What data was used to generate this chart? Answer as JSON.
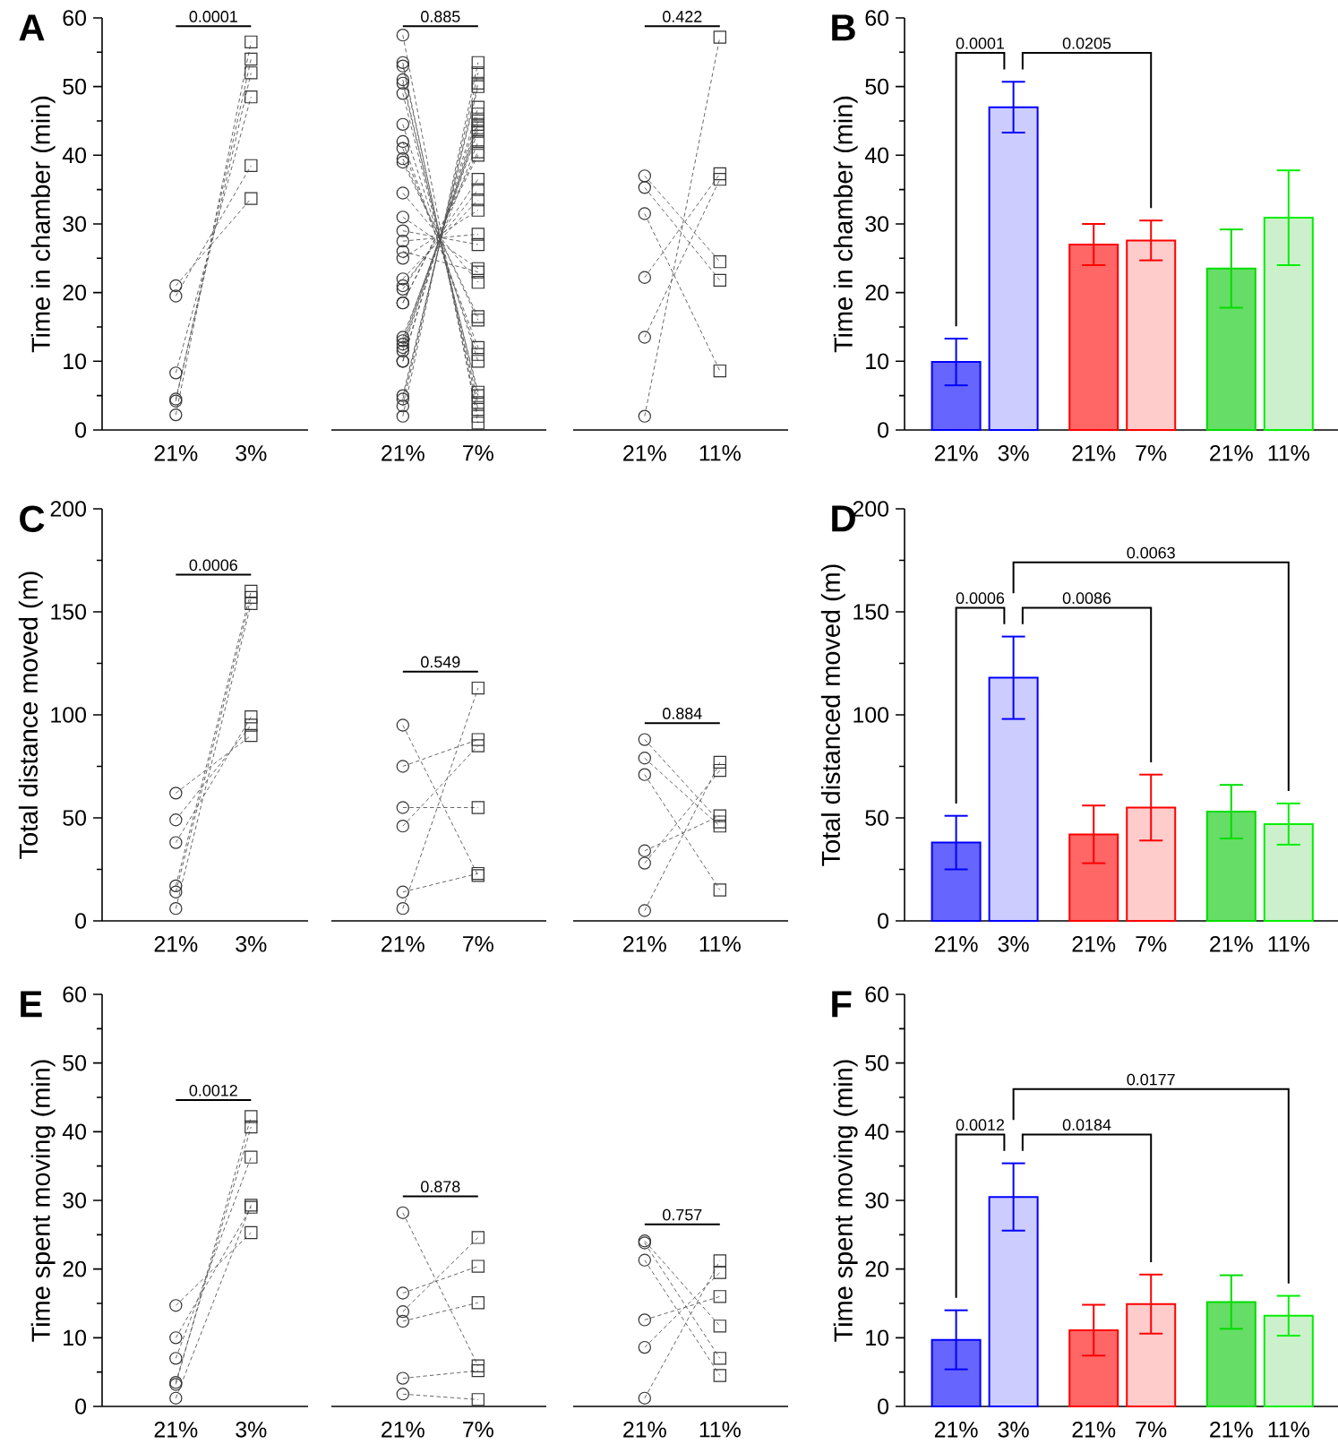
{
  "chart_data": [
    {
      "type": "line",
      "title": "A",
      "ylabel": "Time in chamber (min)",
      "categories": [
        "21%",
        "3%"
      ],
      "ylim": [
        0,
        60
      ],
      "yticks": [
        0,
        10,
        20,
        30,
        40,
        50,
        60
      ],
      "color": "#555555",
      "line_style": "dashed",
      "annotations": [
        "0.0001"
      ],
      "series": [
        {
          "type": "scatter",
          "marker": "circle",
          "color": "#333333",
          "x": [
            "21%",
            "21%",
            "21%",
            "21%",
            "21%",
            "21%"
          ],
          "values": [
            21,
            19.5,
            8.3,
            4.5,
            4.2,
            2.2
          ]
        },
        {
          "type": "scatter",
          "marker": "square",
          "color": "#333333",
          "x": [
            "3%",
            "3%",
            "3%",
            "3%",
            "3%",
            "3%"
          ],
          "values": [
            33.7,
            38.5,
            48.5,
            52,
            54,
            56.5
          ]
        },
        {
          "values": [
            21,
            33.7
          ]
        },
        {
          "values": [
            19.5,
            38.5
          ]
        },
        {
          "values": [
            8.3,
            48.5
          ]
        },
        {
          "values": [
            4.5,
            52
          ]
        },
        {
          "values": [
            4.2,
            54
          ]
        },
        {
          "values": [
            2.2,
            56.5
          ]
        }
      ]
    },
    {
      "type": "line",
      "categories": [
        "21%",
        "7%"
      ],
      "ylim": [
        0,
        60
      ],
      "yticks": [
        0,
        10,
        20,
        30,
        40,
        50,
        60
      ],
      "tick_labels": "x",
      "color": "#555555",
      "line_style": "dashed",
      "annotations": [
        "0.885"
      ],
      "series": [
        {
          "type": "scatter",
          "marker": "circle",
          "color": "#333333",
          "x": [
            "21%",
            "21%",
            "21%",
            "21%",
            "21%",
            "21%",
            "21%",
            "21%",
            "21%",
            "21%",
            "21%",
            "21%",
            "21%",
            "21%",
            "21%",
            "21%",
            "21%",
            "21%",
            "21%",
            "21%",
            "21%",
            "21%",
            "21%",
            "21%",
            "21%",
            "21%",
            "21%",
            "21%",
            "21%",
            "21%",
            "21%",
            "21%",
            "21%"
          ],
          "values": [
            57.5,
            53.5,
            53,
            51,
            50.5,
            49,
            44.5,
            42,
            41,
            39.5,
            39,
            34.5,
            31,
            29,
            27.5,
            26,
            25,
            22,
            21,
            20.5,
            18.5,
            18.5,
            13.5,
            13,
            12.5,
            12,
            11.5,
            10,
            10,
            5,
            4.5,
            3.5,
            2
          ]
        },
        {
          "type": "scatter",
          "marker": "square",
          "color": "#333333",
          "x": [
            "7%",
            "7%",
            "7%",
            "7%",
            "7%",
            "7%",
            "7%",
            "7%",
            "7%",
            "7%",
            "7%",
            "7%",
            "7%",
            "7%",
            "7%",
            "7%",
            "7%",
            "7%",
            "7%",
            "7%",
            "7%",
            "7%",
            "7%",
            "7%",
            "7%",
            "7%",
            "7%",
            "7%",
            "7%",
            "7%",
            "7%",
            "7%",
            "7%"
          ],
          "values": [
            1,
            2,
            3,
            4,
            5,
            5.5,
            10,
            11,
            12,
            16,
            16.5,
            21.5,
            23.5,
            27,
            28.5,
            23,
            32,
            33.5,
            35,
            36.5,
            40,
            40.5,
            42,
            43.5,
            44,
            44.5,
            45,
            46,
            47,
            50,
            50.5,
            52,
            53.5
          ]
        },
        {
          "values": [
            57.5,
            1
          ]
        },
        {
          "values": [
            53.5,
            2
          ]
        },
        {
          "values": [
            53,
            3
          ]
        },
        {
          "values": [
            51,
            4
          ]
        },
        {
          "values": [
            50.5,
            5
          ]
        },
        {
          "values": [
            49,
            5.5
          ]
        },
        {
          "values": [
            44.5,
            10
          ]
        },
        {
          "values": [
            42,
            11
          ]
        },
        {
          "values": [
            41,
            12
          ]
        },
        {
          "values": [
            39.5,
            16
          ]
        },
        {
          "values": [
            39,
            16.5
          ]
        },
        {
          "values": [
            34.5,
            21.5
          ]
        },
        {
          "values": [
            31,
            23.5
          ]
        },
        {
          "values": [
            29,
            27
          ]
        },
        {
          "values": [
            27.5,
            28.5
          ]
        },
        {
          "values": [
            26,
            23
          ]
        },
        {
          "values": [
            25,
            32
          ]
        },
        {
          "values": [
            22,
            33.5
          ]
        },
        {
          "values": [
            21,
            35
          ]
        },
        {
          "values": [
            20.5,
            36.5
          ]
        },
        {
          "values": [
            18.5,
            40
          ]
        },
        {
          "values": [
            18.5,
            40.5
          ]
        },
        {
          "values": [
            13.5,
            42
          ]
        },
        {
          "values": [
            13,
            43.5
          ]
        },
        {
          "values": [
            12.5,
            44
          ]
        },
        {
          "values": [
            12,
            44.5
          ]
        },
        {
          "values": [
            11.5,
            45
          ]
        },
        {
          "values": [
            10,
            46
          ]
        },
        {
          "values": [
            10,
            47
          ]
        },
        {
          "values": [
            5,
            50
          ]
        },
        {
          "values": [
            4.5,
            50.5
          ]
        },
        {
          "values": [
            3.5,
            52
          ]
        },
        {
          "values": [
            2,
            53.5
          ]
        }
      ]
    },
    {
      "type": "line",
      "categories": [
        "21%",
        "11%"
      ],
      "ylim": [
        0,
        60
      ],
      "yticks": [
        0,
        10,
        20,
        30,
        40,
        50,
        60
      ],
      "tick_labels": "x",
      "color": "#555555",
      "line_style": "dashed",
      "annotations": [
        "0.422"
      ],
      "series": [
        {
          "type": "scatter",
          "marker": "circle",
          "color": "#333333",
          "x": [
            "21%",
            "21%",
            "21%",
            "21%",
            "21%",
            "21%"
          ],
          "values": [
            37,
            35.3,
            31.5,
            22.2,
            13.5,
            2
          ]
        },
        {
          "type": "scatter",
          "marker": "square",
          "color": "#333333",
          "x": [
            "11%",
            "11%",
            "11%",
            "11%",
            "11%",
            "11%"
          ],
          "values": [
            24.5,
            21.8,
            8.6,
            37.3,
            36.5,
            57.2
          ]
        },
        {
          "values": [
            37,
            24.5
          ]
        },
        {
          "values": [
            35.3,
            21.8
          ]
        },
        {
          "values": [
            31.5,
            8.6
          ]
        },
        {
          "values": [
            22.2,
            37.3
          ]
        },
        {
          "values": [
            13.5,
            36.5
          ]
        },
        {
          "values": [
            2,
            57.2
          ]
        }
      ]
    },
    {
      "type": "bar",
      "title": "B",
      "ylabel": "Time in chamber (min)",
      "categories": [
        "21%",
        "3%",
        "21%",
        "7%",
        "21%",
        "11%"
      ],
      "ylim": [
        0,
        60
      ],
      "yticks": [
        0,
        10,
        20,
        30,
        40,
        50,
        60
      ],
      "values": [
        9.9,
        47,
        27,
        27.6,
        23.5,
        30.9
      ],
      "errors": [
        3.4,
        3.7,
        3,
        2.9,
        5.7,
        6.9
      ],
      "colors": [
        "#6666ff",
        "#ccccff",
        "#ff6666",
        "#ffcccc",
        "#66dd66",
        "#ccf0cc"
      ],
      "annotations": [
        "0.0001",
        "0.0205"
      ]
    },
    {
      "type": "line",
      "title": "C",
      "ylabel": "Total distance moved (m)",
      "categories": [
        "21%",
        "3%"
      ],
      "ylim": [
        0,
        200
      ],
      "yticks": [
        0,
        50,
        100,
        150,
        200
      ],
      "color": "#555555",
      "line_style": "dashed",
      "annotations": [
        "0.0006"
      ],
      "series": [
        {
          "type": "scatter",
          "marker": "circle",
          "color": "#333333",
          "x": [
            "21%",
            "21%",
            "21%",
            "21%",
            "21%",
            "21%"
          ],
          "values": [
            62,
            49,
            38,
            17,
            14,
            6
          ]
        },
        {
          "type": "scatter",
          "marker": "square",
          "color": "#333333",
          "x": [
            "3%",
            "3%",
            "3%",
            "3%",
            "3%",
            "3%"
          ],
          "values": [
            90,
            95,
            99,
            160,
            157,
            154
          ]
        },
        {
          "values": [
            62,
            90
          ]
        },
        {
          "values": [
            49,
            95
          ]
        },
        {
          "values": [
            38,
            99
          ]
        },
        {
          "values": [
            17,
            160
          ]
        },
        {
          "values": [
            14,
            157
          ]
        },
        {
          "values": [
            6,
            154
          ]
        }
      ]
    },
    {
      "type": "line",
      "categories": [
        "21%",
        "7%"
      ],
      "ylim": [
        0,
        200
      ],
      "yticks": [
        0,
        50,
        100,
        150,
        200
      ],
      "tick_labels": "x",
      "color": "#555555",
      "line_style": "dashed",
      "annotations": [
        "0.549"
      ],
      "series": [
        {
          "type": "scatter",
          "marker": "circle",
          "color": "#333333",
          "x": [
            "21%",
            "21%",
            "21%",
            "21%",
            "21%",
            "21%"
          ],
          "values": [
            95,
            75,
            55,
            46,
            14,
            6
          ]
        },
        {
          "type": "scatter",
          "marker": "square",
          "color": "#333333",
          "x": [
            "7%",
            "7%",
            "7%",
            "7%",
            "7%",
            "7%"
          ],
          "values": [
            22,
            88,
            55,
            85,
            23,
            113
          ]
        },
        {
          "values": [
            95,
            22
          ]
        },
        {
          "values": [
            75,
            88
          ]
        },
        {
          "values": [
            55,
            55
          ]
        },
        {
          "values": [
            46,
            85
          ]
        },
        {
          "values": [
            14,
            23
          ]
        },
        {
          "values": [
            6,
            113
          ]
        }
      ]
    },
    {
      "type": "line",
      "categories": [
        "21%",
        "11%"
      ],
      "ylim": [
        0,
        200
      ],
      "yticks": [
        0,
        50,
        100,
        150,
        200
      ],
      "tick_labels": "x",
      "color": "#555555",
      "line_style": "dashed",
      "annotations": [
        "0.884"
      ],
      "series": [
        {
          "type": "scatter",
          "marker": "circle",
          "color": "#333333",
          "x": [
            "21%",
            "21%",
            "21%",
            "21%",
            "21%",
            "21%"
          ],
          "values": [
            88,
            79,
            71,
            34,
            28,
            5
          ]
        },
        {
          "type": "scatter",
          "marker": "square",
          "color": "#333333",
          "x": [
            "11%",
            "11%",
            "11%",
            "11%",
            "11%",
            "11%"
          ],
          "values": [
            48,
            46,
            15,
            51,
            73,
            77
          ]
        },
        {
          "values": [
            88,
            48
          ]
        },
        {
          "values": [
            79,
            46
          ]
        },
        {
          "values": [
            71,
            15
          ]
        },
        {
          "values": [
            34,
            51
          ]
        },
        {
          "values": [
            28,
            73
          ]
        },
        {
          "values": [
            5,
            77
          ]
        }
      ]
    },
    {
      "type": "bar",
      "title": "D",
      "ylabel": "Total distanced moved (m)",
      "categories": [
        "21%",
        "3%",
        "21%",
        "7%",
        "21%",
        "11%"
      ],
      "ylim": [
        0,
        200
      ],
      "yticks": [
        0,
        50,
        100,
        150,
        200
      ],
      "values": [
        38,
        118,
        42,
        55,
        53,
        47
      ],
      "errors": [
        13,
        20,
        14,
        16,
        13,
        10
      ],
      "colors": [
        "#6666ff",
        "#ccccff",
        "#ff6666",
        "#ffcccc",
        "#66dd66",
        "#ccf0cc"
      ],
      "annotations": [
        "0.0006",
        "0.0086",
        "0.0063"
      ]
    },
    {
      "type": "line",
      "title": "E",
      "ylabel": "Time spent moving (min)",
      "categories": [
        "21%",
        "3%"
      ],
      "ylim": [
        0,
        60
      ],
      "yticks": [
        0,
        10,
        20,
        30,
        40,
        50,
        60
      ],
      "color": "#555555",
      "line_style": "dashed",
      "annotations": [
        "0.0012"
      ],
      "series": [
        {
          "type": "scatter",
          "marker": "circle",
          "color": "#333333",
          "x": [
            "21%",
            "21%",
            "21%",
            "21%",
            "21%",
            "21%"
          ],
          "values": [
            14.7,
            10,
            7,
            3.5,
            3.2,
            1.2
          ]
        },
        {
          "type": "scatter",
          "marker": "square",
          "color": "#333333",
          "x": [
            "3%",
            "3%",
            "3%",
            "3%",
            "3%",
            "3%"
          ],
          "values": [
            25.3,
            29,
            36.3,
            40.7,
            42.2,
            29.3
          ]
        },
        {
          "values": [
            14.7,
            25.3
          ]
        },
        {
          "values": [
            10,
            29
          ]
        },
        {
          "values": [
            7,
            36.3
          ]
        },
        {
          "values": [
            3.5,
            40.7
          ]
        },
        {
          "values": [
            3.2,
            42.2
          ]
        },
        {
          "values": [
            1.2,
            29.3
          ]
        }
      ]
    },
    {
      "type": "line",
      "categories": [
        "21%",
        "7%"
      ],
      "ylim": [
        0,
        60
      ],
      "yticks": [
        0,
        10,
        20,
        30,
        40,
        50,
        60
      ],
      "tick_labels": "x",
      "color": "#555555",
      "line_style": "dashed",
      "annotations": [
        "0.878"
      ],
      "series": [
        {
          "type": "scatter",
          "marker": "circle",
          "color": "#333333",
          "x": [
            "21%",
            "21%",
            "21%",
            "21%",
            "21%",
            "21%"
          ],
          "values": [
            28.2,
            16.5,
            13.8,
            12.4,
            4.1,
            1.8
          ]
        },
        {
          "type": "scatter",
          "marker": "square",
          "color": "#333333",
          "x": [
            "7%",
            "7%",
            "7%",
            "7%",
            "7%",
            "7%"
          ],
          "values": [
            5.9,
            20.4,
            24.6,
            15.1,
            5.2,
            1
          ]
        },
        {
          "values": [
            28.2,
            5.9
          ]
        },
        {
          "values": [
            16.5,
            20.4
          ]
        },
        {
          "values": [
            13.8,
            24.6
          ]
        },
        {
          "values": [
            12.4,
            15.1
          ]
        },
        {
          "values": [
            4.1,
            5.2
          ]
        },
        {
          "values": [
            1.8,
            1
          ]
        }
      ]
    },
    {
      "type": "line",
      "categories": [
        "21%",
        "11%"
      ],
      "ylim": [
        0,
        60
      ],
      "yticks": [
        0,
        10,
        20,
        30,
        40,
        50,
        60
      ],
      "tick_labels": "x",
      "color": "#555555",
      "line_style": "dashed",
      "annotations": [
        "0.757"
      ],
      "series": [
        {
          "type": "scatter",
          "marker": "circle",
          "color": "#333333",
          "x": [
            "21%",
            "21%",
            "21%",
            "21%",
            "21%",
            "21%"
          ],
          "values": [
            24.1,
            23.8,
            21.3,
            12.6,
            8.6,
            1.2
          ]
        },
        {
          "type": "scatter",
          "marker": "square",
          "color": "#333333",
          "x": [
            "11%",
            "11%",
            "11%",
            "11%",
            "11%",
            "11%"
          ],
          "values": [
            11.7,
            7,
            4.5,
            16,
            19.5,
            21.2
          ]
        },
        {
          "values": [
            24.1,
            11.7
          ]
        },
        {
          "values": [
            23.8,
            7
          ]
        },
        {
          "values": [
            21.3,
            4.5
          ]
        },
        {
          "values": [
            12.6,
            16
          ]
        },
        {
          "values": [
            8.6,
            19.5
          ]
        },
        {
          "values": [
            1.2,
            21.2
          ]
        }
      ]
    },
    {
      "type": "bar",
      "title": "F",
      "ylabel": "Time spent moving (min)",
      "categories": [
        "21%",
        "3%",
        "21%",
        "7%",
        "21%",
        "11%"
      ],
      "ylim": [
        0,
        60
      ],
      "yticks": [
        0,
        10,
        20,
        30,
        40,
        50,
        60
      ],
      "values": [
        9.7,
        30.5,
        11.1,
        14.9,
        15.2,
        13.2
      ],
      "errors": [
        4.3,
        4.9,
        3.7,
        4.3,
        3.9,
        2.9
      ],
      "colors": [
        "#6666ff",
        "#ccccff",
        "#ff6666",
        "#ffcccc",
        "#66dd66",
        "#ccf0cc"
      ],
      "annotations": [
        "0.0012",
        "0.0184",
        "0.0177"
      ]
    }
  ]
}
